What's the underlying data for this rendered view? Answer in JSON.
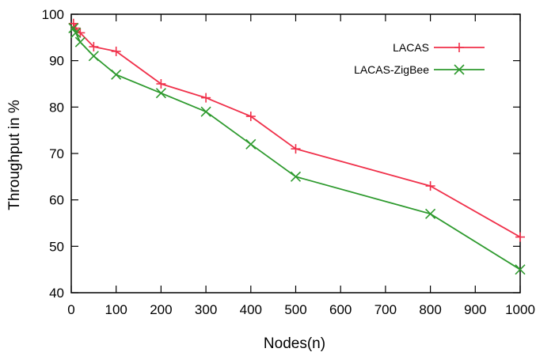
{
  "chart_data": {
    "type": "line",
    "xlabel": "Nodes(n)",
    "ylabel": "Throughput in %",
    "xlim": [
      0,
      1000
    ],
    "ylim": [
      40,
      100
    ],
    "xticks": [
      0,
      100,
      200,
      300,
      400,
      500,
      600,
      700,
      800,
      900,
      1000
    ],
    "yticks": [
      40,
      50,
      60,
      70,
      80,
      90,
      100
    ],
    "grid": false,
    "legend_position": "top-right",
    "series": [
      {
        "name": "LACAS",
        "color": "#f0304a",
        "marker": "plus",
        "x": [
          5,
          10,
          20,
          50,
          100,
          200,
          300,
          400,
          500,
          800,
          1000
        ],
        "y": [
          98,
          97,
          96,
          93,
          92,
          85,
          82,
          78,
          71,
          63,
          52
        ]
      },
      {
        "name": "LACAS-ZigBee",
        "color": "#2e9a2e",
        "marker": "x",
        "x": [
          5,
          10,
          20,
          50,
          100,
          200,
          300,
          400,
          500,
          800,
          1000
        ],
        "y": [
          97,
          96,
          94,
          91,
          87,
          83,
          79,
          72,
          65,
          57,
          45
        ]
      }
    ]
  }
}
